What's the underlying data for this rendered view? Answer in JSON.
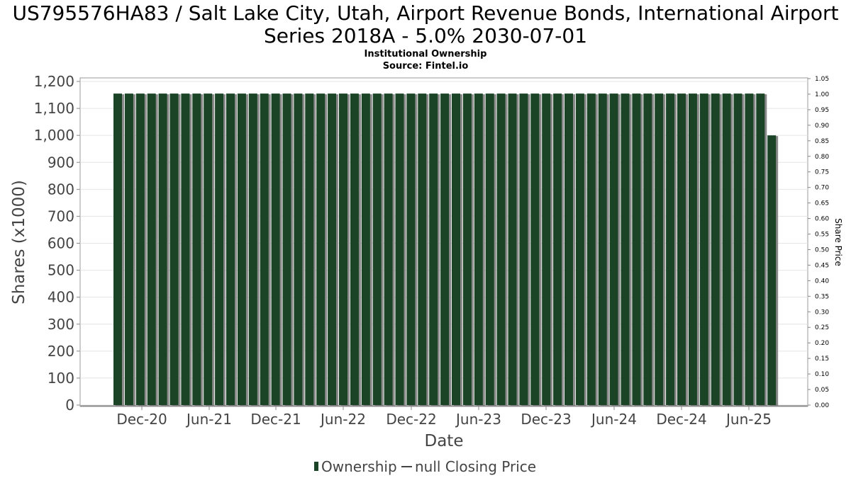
{
  "chart_data": {
    "type": "bar",
    "title_line1": "US795576HA83 / Salt Lake City, Utah, Airport Revenue Bonds, International Airport",
    "title_line2": "Series 2018A - 5.0% 2030-07-01",
    "subtitle_line1": "Institutional Ownership",
    "subtitle_line2": "Source: Fintel.io",
    "xlabel": "Date",
    "ylabel": "Shares (x1000)",
    "y2label": "Share Price",
    "ylim": [
      0,
      1200
    ],
    "y2lim": [
      0,
      1.05
    ],
    "yticks": [
      "0",
      "100",
      "200",
      "300",
      "400",
      "500",
      "600",
      "700",
      "800",
      "900",
      "1,000",
      "1,100",
      "1,200"
    ],
    "y2ticks": [
      "0.00",
      "0.05",
      "0.10",
      "0.15",
      "0.20",
      "0.25",
      "0.30",
      "0.35",
      "0.40",
      "0.45",
      "0.50",
      "0.55",
      "0.60",
      "0.65",
      "0.70",
      "0.75",
      "0.80",
      "0.85",
      "0.90",
      "0.95",
      "1.00",
      "1.05"
    ],
    "xticks": [
      "Dec-20",
      "Jun-21",
      "Dec-21",
      "Jun-22",
      "Dec-22",
      "Jun-23",
      "Dec-23",
      "Jun-24",
      "Dec-24",
      "Jun-25"
    ],
    "series": [
      {
        "name": "Ownership",
        "color": "#1a4425",
        "values": [
          1155,
          1155,
          1155,
          1155,
          1155,
          1155,
          1155,
          1155,
          1155,
          1155,
          1155,
          1155,
          1155,
          1155,
          1155,
          1155,
          1155,
          1155,
          1155,
          1155,
          1155,
          1155,
          1155,
          1155,
          1155,
          1155,
          1155,
          1155,
          1155,
          1155,
          1155,
          1155,
          1155,
          1155,
          1155,
          1155,
          1155,
          1155,
          1155,
          1155,
          1155,
          1155,
          1155,
          1155,
          1155,
          1155,
          1155,
          1155,
          1155,
          1155,
          1155,
          1155,
          1155,
          1155,
          1155,
          1155,
          1155,
          1155,
          1000
        ]
      }
    ],
    "legend": [
      {
        "label": "Ownership",
        "marker": "bar",
        "color": "#1a4425"
      },
      {
        "label": "null Closing Price",
        "marker": "line",
        "color": "#444444"
      }
    ],
    "legend_position": "bottom",
    "grid": true
  }
}
